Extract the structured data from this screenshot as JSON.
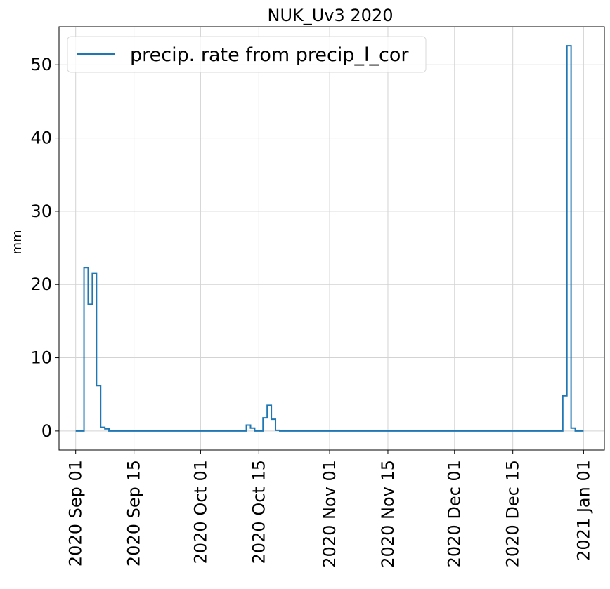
{
  "chart_data": {
    "type": "line",
    "title": "NUK_Uv3 2020",
    "xlabel": "",
    "ylabel": "mm",
    "x_tick_labels": [
      "2020 Sep 01",
      "2020 Sep 15",
      "2020 Oct 01",
      "2020 Oct 15",
      "2020 Nov 01",
      "2020 Nov 15",
      "2020 Dec 01",
      "2020 Dec 15",
      "2021 Jan 01"
    ],
    "x_tick_dates": [
      "2020-09-01",
      "2020-09-15",
      "2020-10-01",
      "2020-10-15",
      "2020-11-01",
      "2020-11-15",
      "2020-12-01",
      "2020-12-15",
      "2021-01-01"
    ],
    "y_tick_labels": [
      "0",
      "10",
      "20",
      "30",
      "40",
      "50"
    ],
    "y_tick_values": [
      0,
      10,
      20,
      30,
      40,
      50
    ],
    "xlim": [
      "2020-08-28",
      "2021-01-06"
    ],
    "ylim": [
      -2.6,
      55.2
    ],
    "grid": true,
    "legend_position": "top-left",
    "series": [
      {
        "name": "precip. rate from precip_l_cor",
        "color": "#1f77b4",
        "drawstyle": "steps",
        "points": [
          {
            "x": "2020-09-01",
            "y": 0
          },
          {
            "x": "2020-09-03",
            "y": 22.3
          },
          {
            "x": "2020-09-04",
            "y": 17.3
          },
          {
            "x": "2020-09-05",
            "y": 21.5
          },
          {
            "x": "2020-09-06",
            "y": 6.2
          },
          {
            "x": "2020-09-07",
            "y": 0.5
          },
          {
            "x": "2020-09-08",
            "y": 0.3
          },
          {
            "x": "2020-09-09",
            "y": 0
          },
          {
            "x": "2020-10-12",
            "y": 0.8
          },
          {
            "x": "2020-10-13",
            "y": 0.4
          },
          {
            "x": "2020-10-14",
            "y": 0
          },
          {
            "x": "2020-10-16",
            "y": 1.8
          },
          {
            "x": "2020-10-17",
            "y": 3.5
          },
          {
            "x": "2020-10-18",
            "y": 1.6
          },
          {
            "x": "2020-10-19",
            "y": 0.1
          },
          {
            "x": "2020-10-20",
            "y": 0
          },
          {
            "x": "2020-12-27",
            "y": 4.8
          },
          {
            "x": "2020-12-28",
            "y": 52.6
          },
          {
            "x": "2020-12-29",
            "y": 0.4
          },
          {
            "x": "2020-12-30",
            "y": 0
          },
          {
            "x": "2021-01-01",
            "y": 0
          }
        ]
      }
    ]
  }
}
